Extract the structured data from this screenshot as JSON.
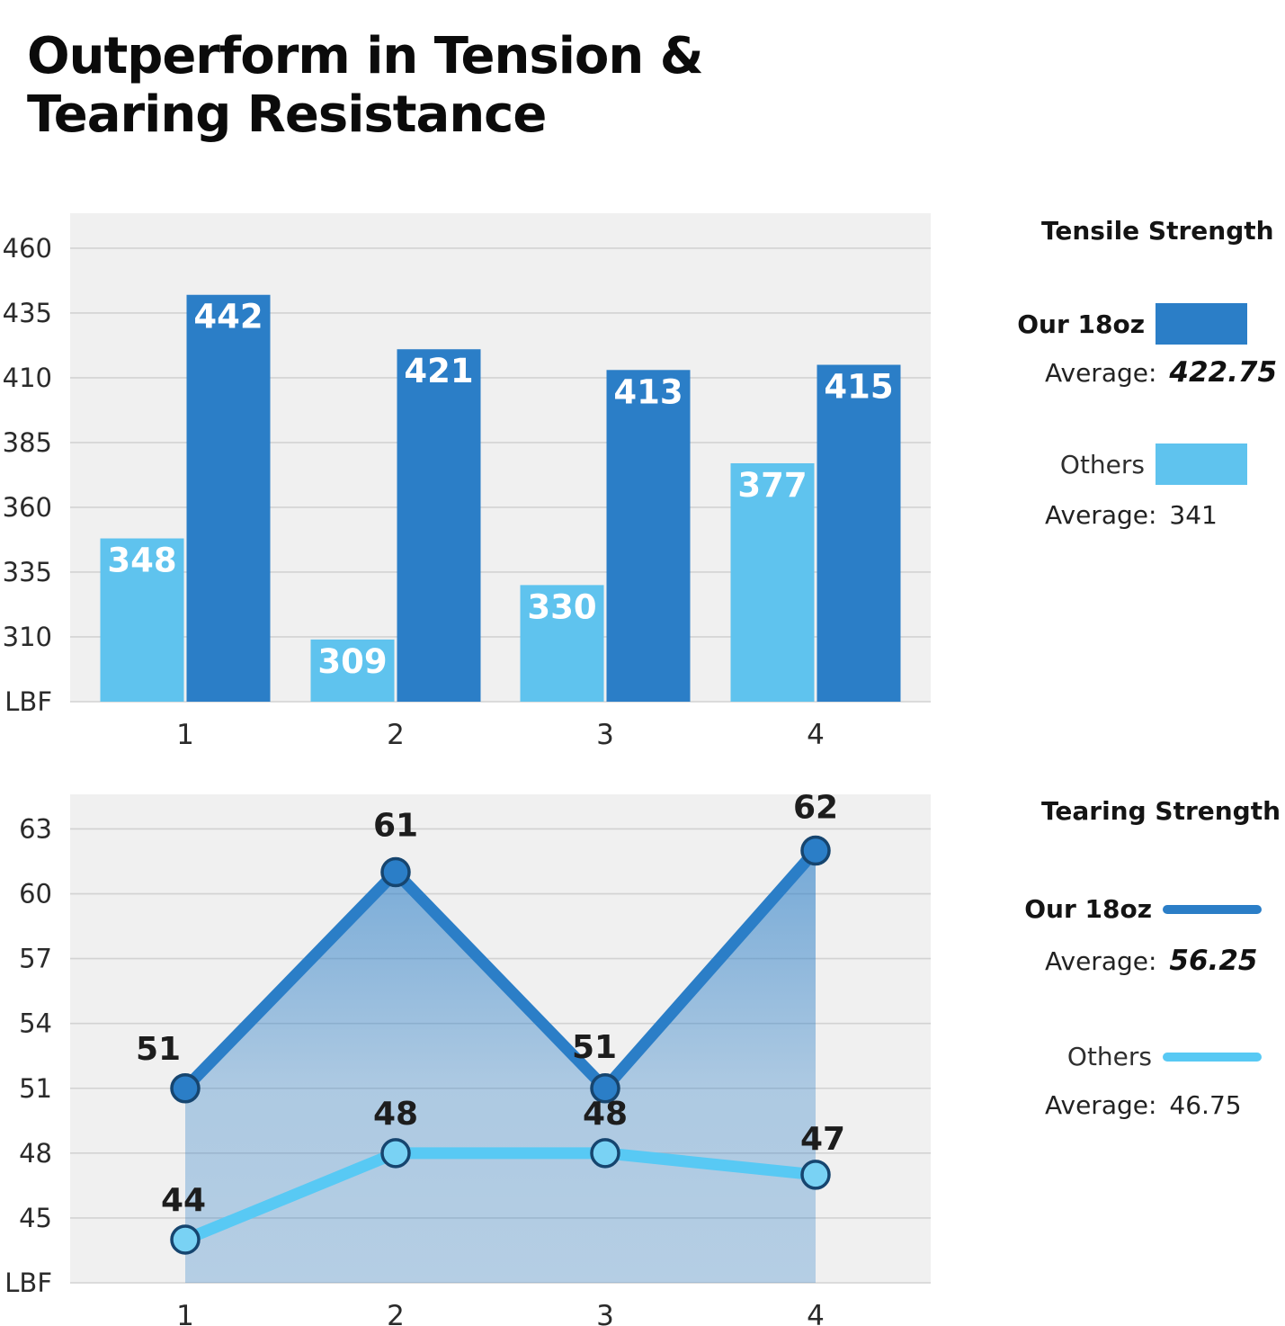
{
  "title": "Outperform in Tension & Tearing Resistance",
  "labels": {
    "average": "Average:"
  },
  "colors": {
    "dark_blue": "#2B7EC7",
    "light_blue": "#5FC3EE",
    "light_line_blue": "#58C9F4",
    "marker_stroke": "#16456F",
    "plot_background": "#F0F0F0",
    "gridline": "#D2D2D2",
    "bar_label_text": "#FFFFFF",
    "point_label_text": "#1D1D1D"
  },
  "chart_data": [
    {
      "type": "bar",
      "title": "Tensile Strength",
      "unit_label": "LBF",
      "categories": [
        "1",
        "2",
        "3",
        "4"
      ],
      "series": [
        {
          "name": "Our 18oz",
          "values": [
            442,
            421,
            413,
            415
          ],
          "color": "#2B7EC7",
          "average": "422.75"
        },
        {
          "name": "Others",
          "values": [
            348,
            309,
            330,
            377
          ],
          "color": "#5FC3EE",
          "average": "341"
        }
      ],
      "yticks": [
        460,
        435,
        410,
        385,
        360,
        335,
        310
      ],
      "ylim": [
        285,
        473.5
      ],
      "grid": true,
      "legend_position": "right"
    },
    {
      "type": "line",
      "title": "Tearing Strength",
      "unit_label": "LBF",
      "categories": [
        "1",
        "2",
        "3",
        "4"
      ],
      "series": [
        {
          "name": "Our 18oz",
          "values": [
            51,
            61,
            51,
            62
          ],
          "color": "#2B7EC7",
          "average": "56.25",
          "area": true
        },
        {
          "name": "Others",
          "values": [
            44,
            48,
            48,
            47
          ],
          "color": "#58C9F4",
          "average": "46.75",
          "area": false
        }
      ],
      "yticks": [
        63,
        60,
        57,
        54,
        51,
        48,
        45
      ],
      "ylim": [
        42,
        64.6
      ],
      "grid": true,
      "legend_position": "right"
    }
  ]
}
